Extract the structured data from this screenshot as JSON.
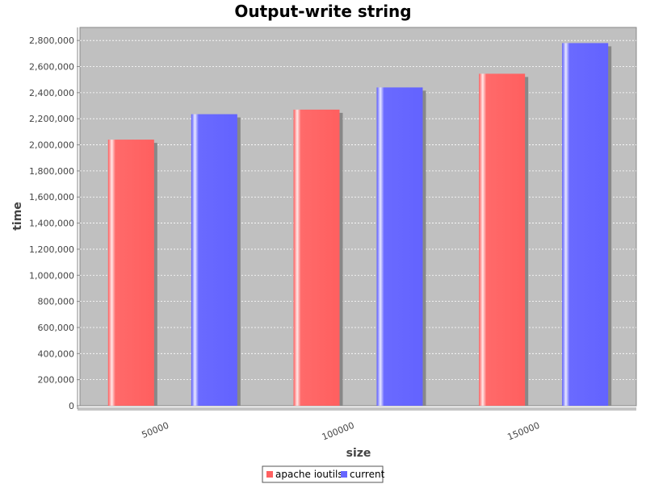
{
  "chart_data": {
    "type": "bar",
    "title": "Output-write string",
    "xlabel": "size",
    "ylabel": "time",
    "categories": [
      "50000",
      "100000",
      "150000"
    ],
    "series": [
      {
        "name": "apache ioutils",
        "values": [
          2040000,
          2270000,
          2545000
        ]
      },
      {
        "name": "current",
        "values": [
          2235000,
          2440000,
          2780000
        ]
      }
    ],
    "ylim": [
      0,
      2900000
    ],
    "y_ticks": [
      0,
      200000,
      400000,
      600000,
      800000,
      1000000,
      1200000,
      1400000,
      1600000,
      1800000,
      2000000,
      2200000,
      2400000,
      2600000,
      2800000
    ],
    "grid": true,
    "legend": "bottom-center",
    "colors": {
      "apache ioutils": "#ff6060",
      "current": "#6666ff",
      "plot_background": "#c0c0c0",
      "gridline": "#ffffff",
      "shadow": "#888888"
    }
  }
}
